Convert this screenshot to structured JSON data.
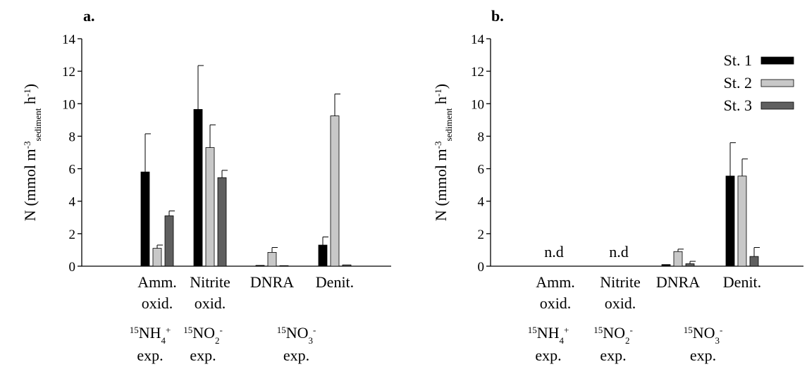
{
  "chart_data": [
    {
      "type": "bar",
      "panel_label": "a.",
      "ylabel": {
        "main": "N (mmol m",
        "sup1": "-3",
        "sub": "sediment",
        "after": " h",
        "sup2": "-1",
        "close": ")"
      },
      "ylim": [
        0,
        14
      ],
      "yticks": [
        "0",
        "2",
        "4",
        "6",
        "8",
        "10",
        "12",
        "14"
      ],
      "categories": [
        {
          "line1": "Amm.",
          "line2": "oxid."
        },
        {
          "line1": "Nitrite",
          "line2": "oxid."
        },
        {
          "line1": "DNRA",
          "line2": ""
        },
        {
          "line1": "Denit.",
          "line2": ""
        }
      ],
      "series": [
        {
          "name": "St. 1",
          "color": "#000000",
          "values": [
            5.8,
            9.65,
            0.05,
            1.3
          ],
          "errors": [
            2.35,
            2.7,
            0,
            0.5
          ]
        },
        {
          "name": "St. 2",
          "color": "#c8c8c8",
          "values": [
            1.1,
            7.3,
            0.85,
            9.25
          ],
          "errors": [
            0.2,
            1.4,
            0.3,
            1.35
          ]
        },
        {
          "name": "St. 3",
          "color": "#5f5f5f",
          "values": [
            3.1,
            5.45,
            0.02,
            0.08
          ],
          "errors": [
            0.3,
            0.45,
            0,
            0
          ]
        }
      ],
      "annotations": [],
      "experiments": [
        {
          "sup": "15",
          "chem": "NH",
          "sub": "4",
          "sup2": "+",
          "label": "exp."
        },
        {
          "sup": "15",
          "chem": "NO",
          "sub": "2",
          "sup2": "-",
          "label": "exp."
        },
        {
          "sup": "15",
          "chem": "NO",
          "sub": "3",
          "sup2": "-",
          "label": "exp."
        }
      ],
      "legend": false
    },
    {
      "type": "bar",
      "panel_label": "b.",
      "ylabel": {
        "main": "N (mmol m",
        "sup1": "-3",
        "sub": "sediment",
        "after": " h",
        "sup2": "-1",
        "close": ")"
      },
      "ylim": [
        0,
        14
      ],
      "yticks": [
        "0",
        "2",
        "4",
        "6",
        "8",
        "10",
        "12",
        "14"
      ],
      "categories": [
        {
          "line1": "Amm.",
          "line2": "oxid."
        },
        {
          "line1": "Nitrite",
          "line2": "oxid."
        },
        {
          "line1": "DNRA",
          "line2": ""
        },
        {
          "line1": "Denit.",
          "line2": ""
        }
      ],
      "series": [
        {
          "name": "St. 1",
          "color": "#000000",
          "values": [
            null,
            null,
            0.1,
            5.55
          ],
          "errors": [
            0,
            0,
            0,
            2.05
          ]
        },
        {
          "name": "St. 2",
          "color": "#c8c8c8",
          "values": [
            null,
            null,
            0.9,
            5.55
          ],
          "errors": [
            0,
            0,
            0.15,
            1.05
          ]
        },
        {
          "name": "St. 3",
          "color": "#5f5f5f",
          "values": [
            null,
            null,
            0.15,
            0.6
          ],
          "errors": [
            0,
            0,
            0.15,
            0.55
          ]
        }
      ],
      "annotations": [
        "n.d",
        "n.d",
        "",
        ""
      ],
      "experiments": [
        {
          "sup": "15",
          "chem": "NH",
          "sub": "4",
          "sup2": "+",
          "label": "exp."
        },
        {
          "sup": "15",
          "chem": "NO",
          "sub": "2",
          "sup2": "-",
          "label": "exp."
        },
        {
          "sup": "15",
          "chem": "NO",
          "sub": "3",
          "sup2": "-",
          "label": "exp."
        }
      ],
      "legend": true,
      "legend_position": "top-right"
    }
  ]
}
